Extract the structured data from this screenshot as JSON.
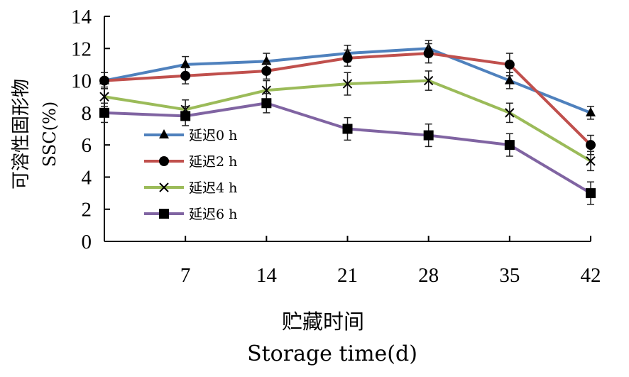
{
  "chart_data": {
    "type": "line",
    "title": "",
    "xlabel_cn": "贮藏时间",
    "xlabel_en": "Storage time(d)",
    "ylabel_cn": "可溶性固形物",
    "ylabel_en": "SSC(%)",
    "x": [
      0,
      7,
      14,
      21,
      28,
      35,
      42
    ],
    "x_tick_labels": [
      "7",
      "14",
      "21",
      "28",
      "35",
      "42"
    ],
    "y_ticks": [
      0,
      2,
      4,
      6,
      8,
      10,
      12,
      14
    ],
    "xlim": [
      0,
      42
    ],
    "ylim": [
      0,
      14
    ],
    "grid": false,
    "legend_position": "left-middle",
    "series": [
      {
        "name": "延迟0 h",
        "color": "#4F81BD",
        "marker": "triangle",
        "values": [
          10.0,
          11.0,
          11.2,
          11.7,
          12.0,
          10.0,
          8.0
        ],
        "errors": [
          0.5,
          0.5,
          0.5,
          0.5,
          0.5,
          0.5,
          0.4
        ]
      },
      {
        "name": "延迟2 h",
        "color": "#C0504D",
        "marker": "circle",
        "values": [
          10.0,
          10.3,
          10.6,
          11.4,
          11.7,
          11.0,
          6.0
        ],
        "errors": [
          0.5,
          0.5,
          0.5,
          0.5,
          0.6,
          0.7,
          0.6
        ]
      },
      {
        "name": "延迟4 h",
        "color": "#9BBB59",
        "marker": "x",
        "values": [
          9.0,
          8.2,
          9.4,
          9.8,
          10.0,
          8.0,
          5.0
        ],
        "errors": [
          0.6,
          0.6,
          0.6,
          0.7,
          0.6,
          0.6,
          0.6
        ]
      },
      {
        "name": "延迟6 h",
        "color": "#8064A2",
        "marker": "square",
        "values": [
          8.0,
          7.8,
          8.6,
          7.0,
          6.6,
          6.0,
          3.0
        ],
        "errors": [
          0.6,
          0.6,
          0.6,
          0.7,
          0.7,
          0.7,
          0.7
        ]
      }
    ]
  }
}
